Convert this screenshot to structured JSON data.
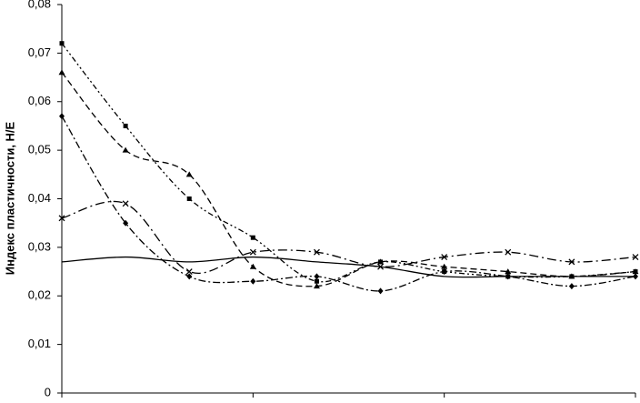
{
  "chart_data": {
    "type": "line",
    "y_label": "Индекс пластичности, Н/Е",
    "categories": [
      null,
      null,
      null,
      null,
      null,
      null,
      null,
      null,
      null,
      null
    ],
    "ylim": [
      0,
      0.08
    ],
    "yticks": [
      0,
      {
        "value": 0.01,
        "label": "0,01"
      },
      {
        "value": 0.02,
        "label": "0,02"
      },
      {
        "value": 0.03,
        "label": "0,03"
      },
      {
        "value": 0.04,
        "label": "0,04"
      },
      {
        "value": 0.05,
        "label": "0,05"
      },
      {
        "value": 0.06,
        "label": "0,06"
      },
      {
        "value": 0.07,
        "label": "0,07"
      },
      {
        "value": 0.08,
        "label": "0,08"
      }
    ],
    "series": [
      {
        "color": "#000000",
        "dash": "none",
        "marker": "none",
        "values": [
          0.027,
          0.028,
          0.027,
          0.028,
          0.027,
          0.026,
          0.024,
          0.024,
          0.024,
          0.024
        ]
      },
      {
        "color": "#000000",
        "dash": "10,4,2,4",
        "marker": "x",
        "values": [
          0.036,
          0.039,
          0.025,
          0.029,
          0.029,
          0.026,
          0.028,
          0.029,
          0.027,
          0.028
        ]
      },
      {
        "color": "#000000",
        "dash": "6,3,2,3,2,3",
        "marker": "square",
        "values": [
          0.072,
          0.055,
          0.04,
          0.032,
          0.023,
          0.027,
          0.025,
          0.024,
          0.024,
          0.025
        ]
      },
      {
        "color": "#000000",
        "dash": "7,4",
        "marker": "triangle",
        "values": [
          0.066,
          0.05,
          0.045,
          0.026,
          0.022,
          0.027,
          0.026,
          0.025,
          0.024,
          0.025
        ]
      },
      {
        "color": "#000000",
        "dash": "8,3,2,3",
        "marker": "diamond",
        "values": [
          0.057,
          0.035,
          0.024,
          0.023,
          0.024,
          0.021,
          0.025,
          0.024,
          0.022,
          0.024
        ]
      }
    ]
  }
}
